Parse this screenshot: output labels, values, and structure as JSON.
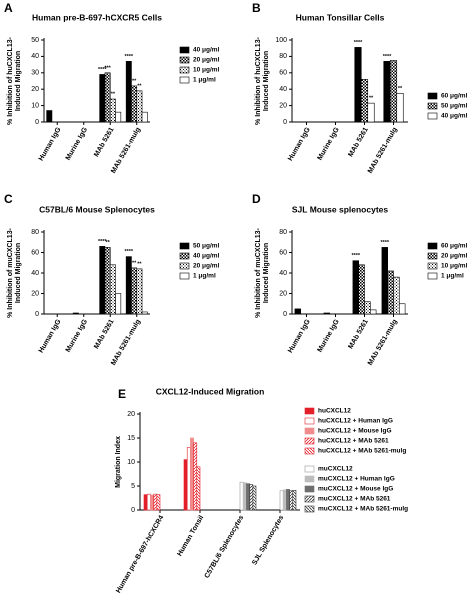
{
  "chart_data": [
    {
      "type": "bar",
      "label": "A",
      "title": "Human pre-B-697-hCXCR5 Cells",
      "ylabel": [
        "% Inhibition of huCXCL13-",
        "Induced Migration"
      ],
      "categories": [
        "Human IgG",
        "Murine IgG",
        "MAb 5261",
        "MAb 5261-mulg"
      ],
      "ylim": [
        0,
        50
      ],
      "yticks": [
        0,
        10,
        20,
        30,
        40,
        50
      ],
      "series": [
        {
          "name": "40 μg/ml",
          "color": "#000000",
          "pattern": "solid",
          "values": [
            7,
            null,
            29,
            37
          ],
          "sig": [
            null,
            null,
            "****",
            "****"
          ]
        },
        {
          "name": "20 μg/ml",
          "color": "#000000",
          "pattern": "checker",
          "values": [
            null,
            null,
            30,
            22
          ],
          "sig": [
            null,
            null,
            "***",
            "**"
          ]
        },
        {
          "name": "10 μg/ml",
          "color": "#000000",
          "pattern": "grid",
          "values": [
            null,
            null,
            14,
            19
          ],
          "sig": [
            null,
            null,
            "**",
            "**"
          ]
        },
        {
          "name": "1 μg/ml",
          "color": "#000000",
          "pattern": "open",
          "values": [
            null,
            null,
            6,
            6
          ],
          "sig": [
            null,
            null,
            null,
            null
          ]
        }
      ]
    },
    {
      "type": "bar",
      "label": "B",
      "title": "Human Tonsillar Cells",
      "ylabel": [
        "% Inhibition of huCXCL13-",
        "Induced Migration"
      ],
      "categories": [
        "Human IgG",
        "Murine IgG",
        "MAb 5261",
        "MAb 5261-mulg"
      ],
      "ylim": [
        0,
        100
      ],
      "yticks": [
        0,
        20,
        40,
        60,
        80,
        100
      ],
      "series": [
        {
          "name": "60 μg/ml",
          "color": "#000000",
          "pattern": "solid",
          "values": [
            null,
            null,
            91,
            74
          ],
          "sig": [
            null,
            null,
            "****",
            "****"
          ]
        },
        {
          "name": "50 μg/ml",
          "color": "#000000",
          "pattern": "checker",
          "values": [
            null,
            null,
            52,
            75
          ],
          "sig": [
            null,
            null,
            null,
            null
          ]
        },
        {
          "name": "40 μg/ml",
          "color": "#000000",
          "pattern": "open",
          "values": [
            null,
            null,
            23,
            35
          ],
          "sig": [
            null,
            null,
            "**",
            "**"
          ]
        }
      ]
    },
    {
      "type": "bar",
      "label": "C",
      "title": "C57BL/6 Mouse Splenocytes",
      "ylabel": [
        "% Inhibition of muCXCL13-",
        "Induced Migration"
      ],
      "categories": [
        "Human IgG",
        "Murine IgG",
        "MAb 5261",
        "MAb 5261-mulg"
      ],
      "ylim": [
        0,
        80
      ],
      "yticks": [
        0,
        20,
        40,
        60,
        80
      ],
      "series": [
        {
          "name": "50 μg/ml",
          "color": "#000000",
          "pattern": "solid",
          "values": [
            null,
            1,
            66,
            56
          ],
          "sig": [
            null,
            null,
            "****",
            "****"
          ]
        },
        {
          "name": "40 μg/ml",
          "color": "#000000",
          "pattern": "checker",
          "values": [
            null,
            null,
            65,
            45
          ],
          "sig": [
            null,
            null,
            "**",
            "**"
          ]
        },
        {
          "name": "20 μg/ml",
          "color": "#000000",
          "pattern": "grid",
          "values": [
            null,
            null,
            48,
            44
          ],
          "sig": [
            null,
            null,
            null,
            "**"
          ]
        },
        {
          "name": "1 μg/ml",
          "color": "#000000",
          "pattern": "open",
          "values": [
            null,
            null,
            20,
            2
          ],
          "sig": [
            null,
            null,
            null,
            null
          ]
        }
      ]
    },
    {
      "type": "bar",
      "label": "D",
      "title": "SJL Mouse splenocytes",
      "ylabel": [
        "% Inhibition of muCXCL13-",
        "Induced Migration"
      ],
      "categories": [
        "Human IgG",
        "Murine IgG",
        "MAb 5261",
        "MAb 5261-mulg"
      ],
      "ylim": [
        0,
        80
      ],
      "yticks": [
        0,
        20,
        40,
        60,
        80
      ],
      "series": [
        {
          "name": "60 μg/ml",
          "color": "#000000",
          "pattern": "solid",
          "values": [
            5,
            1,
            52,
            65
          ],
          "sig": [
            null,
            null,
            "****",
            "****"
          ]
        },
        {
          "name": "20 μg/ml",
          "color": "#000000",
          "pattern": "checker",
          "values": [
            null,
            null,
            48,
            42
          ],
          "sig": [
            null,
            null,
            null,
            null
          ]
        },
        {
          "name": "10 μg/ml",
          "color": "#000000",
          "pattern": "grid",
          "values": [
            null,
            null,
            12,
            36
          ],
          "sig": [
            null,
            null,
            null,
            null
          ]
        },
        {
          "name": "1 μg/ml",
          "color": "#000000",
          "pattern": "open",
          "values": [
            null,
            null,
            4,
            10
          ],
          "sig": [
            null,
            null,
            null,
            null
          ]
        }
      ]
    },
    {
      "type": "bar",
      "label": "E",
      "title": "CXCL12-Induced Migration",
      "ylabel": [
        "Migration Index"
      ],
      "categories": [
        "Human pre-B-697-hCXCR4",
        "Human Tonsil",
        "C57BL/6 Splenocytes",
        "SJL Splenocytes"
      ],
      "ylim": [
        0,
        20
      ],
      "yticks": [
        0,
        5,
        10,
        15,
        20
      ],
      "series": [
        {
          "name": "huCXCL12",
          "color": "#e3202a",
          "pattern": "solid",
          "values": [
            3.2,
            10.5,
            null,
            null
          ]
        },
        {
          "name": "huCXCL12 + Human IgG",
          "color": "#e3202a",
          "pattern": "open",
          "values": [
            3.3,
            13,
            null,
            null
          ]
        },
        {
          "name": "huCXCL12 + Mouse IgG",
          "color": "#f08c8c",
          "pattern": "solid",
          "values": [
            3.1,
            15,
            null,
            null
          ]
        },
        {
          "name": "huCXCL12 + MAb 5261",
          "color": "#e3202a",
          "pattern": "hatch",
          "values": [
            3.3,
            14,
            null,
            null
          ]
        },
        {
          "name": "huCXCL12 + MAb 5261-mulg",
          "color": "#e3202a",
          "pattern": "backhatch",
          "values": [
            3.2,
            9,
            null,
            null
          ]
        },
        {
          "name": "muCXCL12",
          "color": "#9a9a9a",
          "pattern": "open",
          "values": [
            null,
            null,
            5.8,
            4.0
          ]
        },
        {
          "name": "muCXCL12 + Human IgG",
          "color": "#bdbdbd",
          "pattern": "solid",
          "values": [
            null,
            null,
            5.7,
            4.2
          ]
        },
        {
          "name": "muCXCL12 + Mouse IgG",
          "color": "#6e6e6e",
          "pattern": "solid",
          "values": [
            null,
            null,
            5.5,
            4.3
          ]
        },
        {
          "name": "muCXCL12 + MAb 5261",
          "color": "#333333",
          "pattern": "hatch",
          "values": [
            null,
            null,
            5.3,
            4.0
          ]
        },
        {
          "name": "muCXCL12 + MAb 5261-mulg",
          "color": "#333333",
          "pattern": "backhatch",
          "values": [
            null,
            null,
            5.0,
            4.1
          ]
        }
      ]
    }
  ]
}
